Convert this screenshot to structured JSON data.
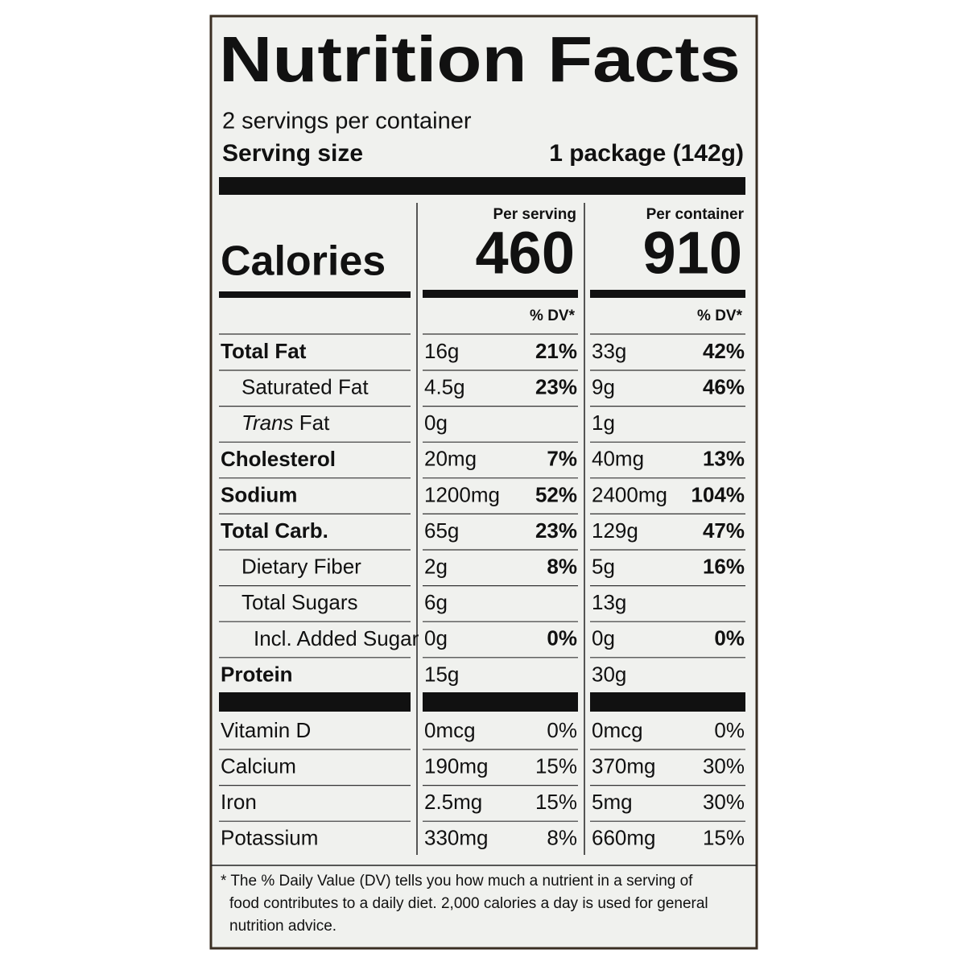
{
  "title": "Nutrition Facts",
  "servings": "2 servings per container",
  "serving_size": {
    "label": "Serving size",
    "value": "1 package (142g)"
  },
  "columns": [
    "Per serving",
    "Per container"
  ],
  "calories": {
    "label": "Calories",
    "values": [
      "460",
      "910"
    ]
  },
  "dv_header": [
    "% DV*",
    "% DV*"
  ],
  "nutrients": [
    {
      "name": "Total Fat",
      "level": 0,
      "bold": true,
      "cells": [
        [
          "16g",
          "21%"
        ],
        [
          "33g",
          "42%"
        ]
      ]
    },
    {
      "name": "Saturated Fat",
      "level": 1,
      "bold": false,
      "cells": [
        [
          "4.5g",
          "23%"
        ],
        [
          "9g",
          "46%"
        ]
      ]
    },
    {
      "name_italic": "Trans",
      "name": " Fat",
      "level": 1,
      "bold": false,
      "cells": [
        [
          "0g"
        ],
        [
          "1g"
        ]
      ]
    },
    {
      "name": "Cholesterol",
      "level": 0,
      "bold": true,
      "cells": [
        [
          "20mg",
          "7%"
        ],
        [
          "40mg",
          "13%"
        ]
      ]
    },
    {
      "name": "Sodium",
      "level": 0,
      "bold": true,
      "cells": [
        [
          "1200mg",
          "52%"
        ],
        [
          "2400mg",
          "104%"
        ]
      ]
    },
    {
      "name": "Total Carb.",
      "level": 0,
      "bold": true,
      "cells": [
        [
          "65g",
          "23%"
        ],
        [
          "129g",
          "47%"
        ]
      ]
    },
    {
      "name": "Dietary Fiber",
      "level": 1,
      "bold": false,
      "cells": [
        [
          "2g",
          "8%"
        ],
        [
          "5g",
          "16%"
        ]
      ]
    },
    {
      "name": "Total Sugars",
      "level": 1,
      "bold": false,
      "cells": [
        [
          "6g"
        ],
        [
          "13g"
        ]
      ]
    },
    {
      "name": "Incl. Added Sugar",
      "level": 2,
      "bold": false,
      "cells": [
        [
          "0g",
          "0%"
        ],
        [
          "0g",
          "0%"
        ]
      ]
    },
    {
      "name": "Protein",
      "level": 0,
      "bold": true,
      "cells": [
        [
          "15g"
        ],
        [
          "30g"
        ]
      ]
    }
  ],
  "vitamins": [
    {
      "name": "Vitamin D",
      "cells": [
        [
          "0mcg",
          "0%"
        ],
        [
          "0mcg",
          "0%"
        ]
      ]
    },
    {
      "name": "Calcium",
      "cells": [
        [
          "190mg",
          "15%"
        ],
        [
          "370mg",
          "30%"
        ]
      ]
    },
    {
      "name": "Iron",
      "cells": [
        [
          "2.5mg",
          "15%"
        ],
        [
          "5mg",
          "30%"
        ]
      ]
    },
    {
      "name": "Potassium",
      "cells": [
        [
          "330mg",
          "8%"
        ],
        [
          "660mg",
          "15%"
        ]
      ]
    }
  ],
  "footnote": [
    "* The % Daily Value (DV) tells you how much a nutrient in a serving of",
    "food contributes to a daily diet. 2,000 calories a day is used for general",
    "nutrition advice."
  ]
}
